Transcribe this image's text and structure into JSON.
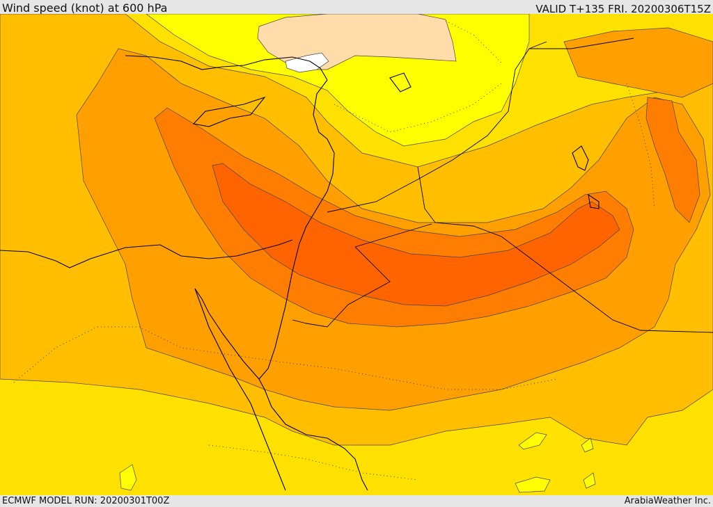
{
  "header": {
    "title": "Wind speed (knot) at 600 hPa",
    "valid": "VALID T+135 FRI. 20200306T15Z"
  },
  "footer": {
    "model_run": "ECMWF MODEL RUN: 20200301T00Z",
    "credit": "ArabiaWeather Inc."
  },
  "palette": {
    "speed_0": "#ffffff",
    "speed_1": "#ffdcaa",
    "speed_2": "#ffff00",
    "speed_3": "#ffe100",
    "speed_4": "#ffbe00",
    "speed_5": "#ffa000",
    "speed_6": "#ff7d00",
    "speed_7": "#ff6400",
    "coastline": "#000000",
    "contour": "#444444"
  }
}
